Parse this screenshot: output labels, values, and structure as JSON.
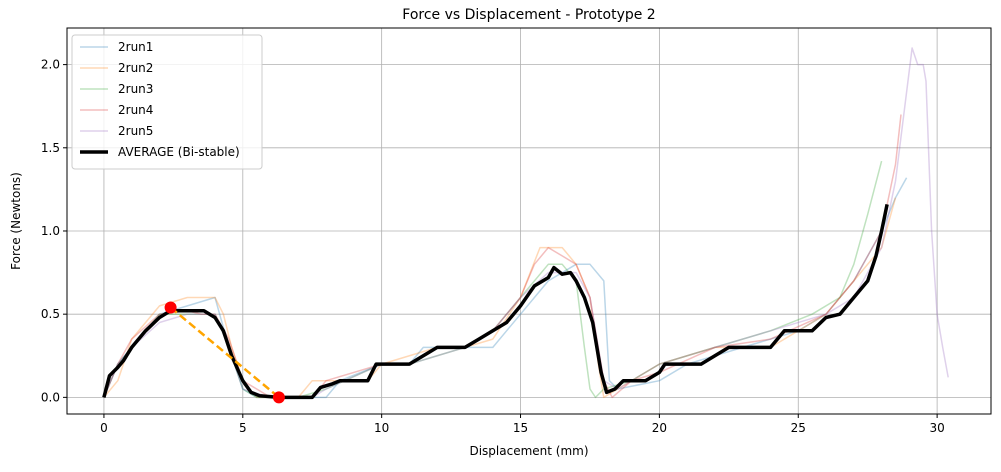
{
  "chart_data": {
    "type": "line",
    "title": "Force vs Displacement - Prototype 2",
    "xlabel": "Displacement (mm)",
    "ylabel": "Force (Newtons)",
    "xlim": [
      -1.33,
      31.94
    ],
    "ylim": [
      -0.1,
      2.22
    ],
    "xticks": [
      0,
      5,
      10,
      15,
      20,
      25,
      30
    ],
    "yticks": [
      {
        "value": 0,
        "label": "0.0"
      },
      {
        "value": 0.5,
        "label": "0.5"
      },
      {
        "value": 1,
        "label": "1.0"
      },
      {
        "value": 1.5,
        "label": "1.5"
      },
      {
        "value": 2,
        "label": "2.0"
      }
    ],
    "grid": true,
    "legend": "upper left",
    "series": [
      {
        "name": "2run1",
        "color": "#1f77b4",
        "opacity": 0.3,
        "width": 1.5,
        "x": [
          0,
          0.5,
          1,
          2,
          3,
          4,
          4.5,
          5,
          5.5,
          6,
          8,
          8.5,
          10,
          11,
          11.5,
          14,
          14.5,
          15,
          16,
          17,
          17.5,
          18,
          18.2,
          18.5,
          20,
          21,
          23,
          25,
          26,
          27,
          28,
          28.5,
          28.9
        ],
        "values": [
          0,
          0.2,
          0.3,
          0.5,
          0.55,
          0.6,
          0.3,
          0.05,
          0,
          0,
          0,
          0.1,
          0.2,
          0.2,
          0.3,
          0.3,
          0.4,
          0.5,
          0.7,
          0.8,
          0.8,
          0.7,
          0.1,
          0.05,
          0.1,
          0.2,
          0.3,
          0.4,
          0.5,
          0.7,
          1.0,
          1.2,
          1.32
        ]
      },
      {
        "name": "2run2",
        "color": "#ff7f0e",
        "opacity": 0.3,
        "width": 1.5,
        "x": [
          0,
          0.5,
          1,
          2,
          3,
          4,
          4.3,
          4.6,
          5,
          5.5,
          7,
          7.5,
          9.5,
          10,
          12,
          13,
          14,
          15,
          15.7,
          16.5,
          17,
          17.5,
          17.8,
          18,
          18.5,
          19,
          20,
          22,
          24,
          26,
          27,
          28,
          28.5
        ],
        "values": [
          0,
          0.1,
          0.35,
          0.55,
          0.6,
          0.6,
          0.5,
          0.3,
          0.1,
          0,
          0,
          0.1,
          0.1,
          0.2,
          0.3,
          0.3,
          0.35,
          0.6,
          0.9,
          0.9,
          0.8,
          0.6,
          0.2,
          0,
          0.05,
          0.1,
          0.2,
          0.3,
          0.3,
          0.5,
          0.7,
          0.9,
          1.2
        ]
      },
      {
        "name": "2run3",
        "color": "#2ca02c",
        "opacity": 0.3,
        "width": 1.5,
        "x": [
          0,
          0.5,
          1,
          2,
          3,
          4,
          4.5,
          5,
          5.5,
          7,
          8,
          10,
          11,
          13,
          14,
          15,
          16,
          16.5,
          17,
          17.3,
          17.5,
          17.7,
          18,
          19,
          20,
          22,
          24,
          25.5,
          26.5,
          27,
          27.5,
          28
        ],
        "values": [
          0,
          0.2,
          0.3,
          0.5,
          0.5,
          0.5,
          0.3,
          0.05,
          0,
          0,
          0.05,
          0.2,
          0.2,
          0.3,
          0.4,
          0.6,
          0.8,
          0.8,
          0.7,
          0.3,
          0.05,
          0,
          0.05,
          0.1,
          0.2,
          0.3,
          0.4,
          0.5,
          0.6,
          0.8,
          1.1,
          1.42
        ]
      },
      {
        "name": "2run4",
        "color": "#d62728",
        "opacity": 0.3,
        "width": 1.5,
        "x": [
          0,
          0.5,
          1,
          2,
          3,
          3.5,
          4,
          4.5,
          5,
          6,
          7.5,
          8,
          10,
          11,
          12,
          13,
          14,
          15,
          15.5,
          16,
          16.5,
          17,
          17.5,
          18,
          18.3,
          19,
          20,
          22,
          24,
          26,
          27,
          28,
          28.5,
          28.7
        ],
        "values": [
          0,
          0.2,
          0.35,
          0.5,
          0.52,
          0.5,
          0.5,
          0.35,
          0.1,
          0,
          0,
          0.1,
          0.2,
          0.2,
          0.3,
          0.3,
          0.4,
          0.6,
          0.8,
          0.9,
          0.85,
          0.8,
          0.6,
          0.1,
          0,
          0.1,
          0.15,
          0.3,
          0.35,
          0.5,
          0.7,
          1.0,
          1.4,
          1.7
        ]
      },
      {
        "name": "2run5",
        "color": "#9467bd",
        "opacity": 0.3,
        "width": 1.5,
        "x": [
          0,
          0.5,
          1,
          2,
          3,
          4,
          4.5,
          5,
          6,
          7.5,
          8,
          10,
          11,
          13,
          14,
          15,
          16,
          17,
          17.5,
          18,
          18.5,
          19,
          20,
          22,
          24,
          26,
          27,
          28,
          28.5,
          28.8,
          29.1,
          29.3,
          29.5,
          29.6,
          29.8,
          30,
          30.2,
          30.4
        ],
        "values": [
          0,
          0.2,
          0.3,
          0.45,
          0.5,
          0.5,
          0.3,
          0.05,
          0,
          0,
          0.05,
          0.2,
          0.2,
          0.3,
          0.4,
          0.6,
          0.75,
          0.75,
          0.6,
          0.1,
          0.05,
          0.1,
          0.2,
          0.3,
          0.4,
          0.5,
          0.6,
          0.9,
          1.3,
          1.7,
          2.1,
          2.0,
          2.0,
          1.9,
          1.0,
          0.5,
          0.3,
          0.12
        ]
      },
      {
        "name": "AVERAGE (Bi-stable)",
        "color": "#000000",
        "opacity": 1,
        "width": 3.5,
        "x": [
          0,
          0.2,
          0.5,
          0.7,
          1,
          1.5,
          2,
          2.4,
          3,
          3.6,
          4,
          4.3,
          4.6,
          5,
          5.3,
          5.6,
          6.3,
          7.5,
          7.8,
          8.2,
          8.5,
          9.5,
          9.8,
          11,
          11.5,
          12,
          13,
          13.5,
          14,
          14.5,
          15,
          15.5,
          16,
          16.2,
          16.5,
          16.8,
          17,
          17.3,
          17.6,
          17.9,
          18.1,
          18.4,
          18.7,
          19.5,
          20,
          20.2,
          21.5,
          22,
          22.5,
          24,
          24.5,
          25.5,
          26,
          26.5,
          27,
          27.5,
          27.8,
          28,
          28.2
        ],
        "values": [
          0,
          0.13,
          0.18,
          0.22,
          0.3,
          0.4,
          0.48,
          0.52,
          0.52,
          0.52,
          0.48,
          0.4,
          0.25,
          0.1,
          0.03,
          0.01,
          0,
          0,
          0.06,
          0.08,
          0.1,
          0.1,
          0.2,
          0.2,
          0.25,
          0.3,
          0.3,
          0.35,
          0.4,
          0.45,
          0.55,
          0.67,
          0.72,
          0.78,
          0.74,
          0.75,
          0.7,
          0.6,
          0.45,
          0.15,
          0.03,
          0.05,
          0.1,
          0.1,
          0.15,
          0.2,
          0.2,
          0.25,
          0.3,
          0.3,
          0.4,
          0.4,
          0.48,
          0.5,
          0.6,
          0.7,
          0.85,
          1.0,
          1.16
        ]
      }
    ],
    "markers": {
      "x": [
        2.4,
        6.3
      ],
      "values": [
        0.54,
        0
      ],
      "color": "#ff0000",
      "line_color": "#ffa500"
    }
  }
}
